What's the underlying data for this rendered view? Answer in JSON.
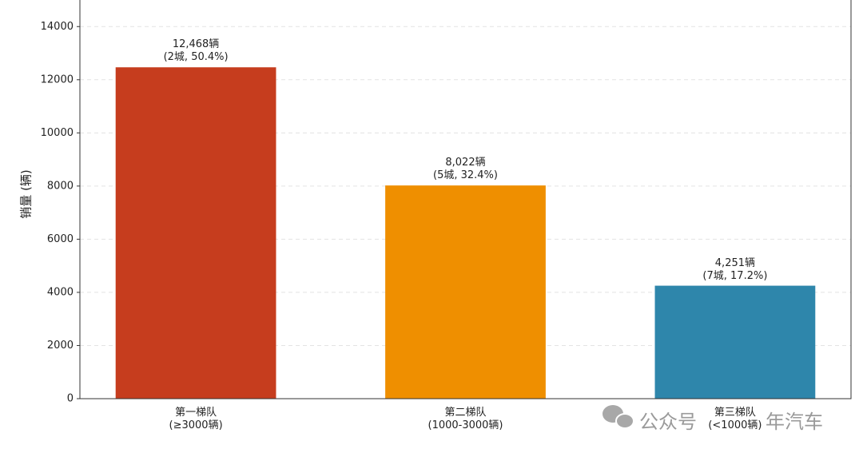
{
  "chart_data": {
    "type": "bar",
    "y_label": "销量 (辆)",
    "categories": [
      "第一梯队\n(≥3000辆)",
      "第二梯队\n(1000-3000辆)",
      "第三梯队\n(<1000辆)"
    ],
    "values": [
      12468,
      8022,
      4251
    ],
    "value_labels": [
      "12,468辆\n(2城, 50.4%)",
      "8,022辆\n(5城, 32.4%)",
      "4,251辆\n(7城, 17.2%)"
    ],
    "colors": [
      "#c63d1e",
      "#ef8f00",
      "#2e86ab"
    ],
    "ylim": [
      0,
      15000
    ],
    "yticks": [
      0,
      2000,
      4000,
      6000,
      8000,
      10000,
      12000,
      14000
    ],
    "grid": true,
    "watermark": [
      "公众号",
      "年汽车"
    ]
  }
}
